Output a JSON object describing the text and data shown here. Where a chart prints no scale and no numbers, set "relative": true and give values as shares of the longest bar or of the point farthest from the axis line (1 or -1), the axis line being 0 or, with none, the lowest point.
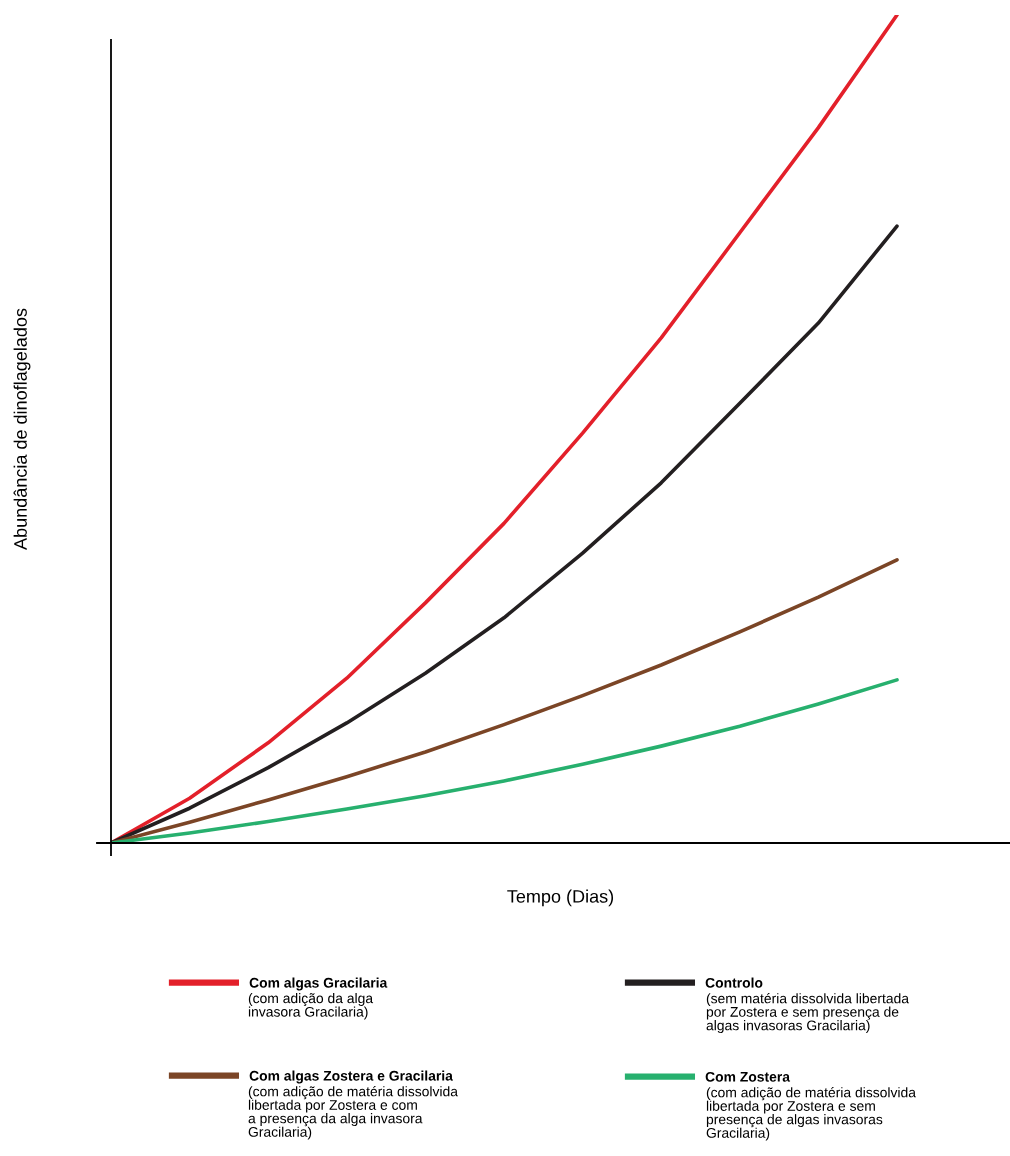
{
  "chart_data": {
    "type": "line",
    "relative": true,
    "xlabel": "Tempo (Dias)",
    "ylabel": "Abundância de dinoflagelados",
    "categories": [
      null,
      null,
      null,
      null,
      null,
      null,
      null,
      null,
      null,
      null,
      null
    ],
    "series": [
      {
        "name": "Com algas Gracilaria",
        "color": "#e3202a",
        "values": [
          0,
          0.054,
          0.121,
          0.199,
          0.29,
          0.386,
          0.495,
          0.61,
          0.737,
          0.864,
          1
        ]
      },
      {
        "name": "Controlo",
        "color": "#231f20",
        "values": [
          0,
          0.042,
          0.091,
          0.145,
          0.205,
          0.272,
          0.35,
          0.435,
          0.531,
          0.628,
          0.745
        ]
      },
      {
        "name": "Com algas Zostera e Gracilaria",
        "color": "#7b4526",
        "values": [
          0,
          0.025,
          0.052,
          0.08,
          0.11,
          0.143,
          0.178,
          0.215,
          0.255,
          0.297,
          0.342
        ]
      },
      {
        "name": "Com Zostera",
        "color": "#27b06e",
        "values": [
          0,
          0.012,
          0.026,
          0.041,
          0.057,
          0.075,
          0.095,
          0.117,
          0.141,
          0.168,
          0.197
        ]
      }
    ],
    "annotations": [
      "(com adição da alga\ninvasora Gracilaria)",
      "(sem matéria dissolvida libertada\npor Zostera e sem presença de\nalgas invasoras Gracilaria)",
      "(com adição de matéria dissolvida\nlibertada por Zostera e com\na presença da alga invasora\nGracilaria)",
      "(com adição de matéria dissolvida\nlibertada por Zostera e sem\npresença de algas invasoras\nGracilaria)"
    ],
    "legend": "bottom",
    "grid": false,
    "marker": "none",
    "line_style": "solid"
  }
}
